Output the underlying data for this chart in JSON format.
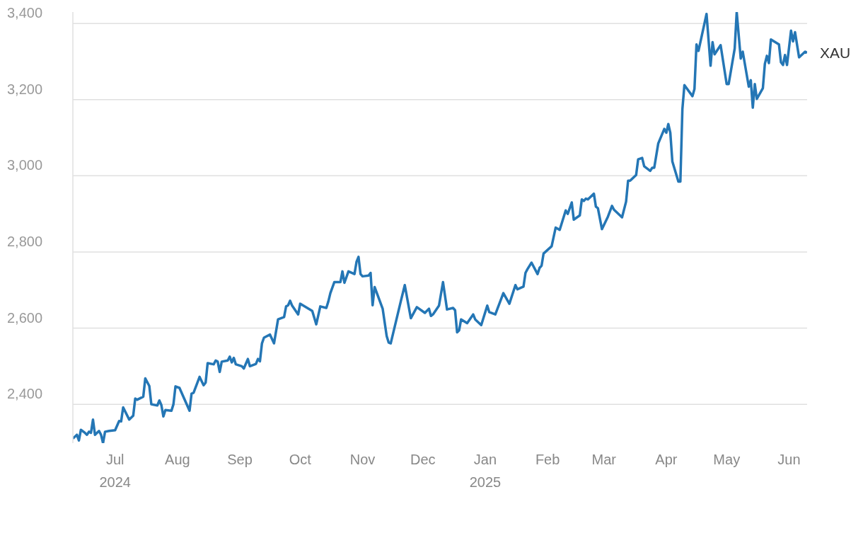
{
  "chart_data": {
    "type": "line",
    "x": [
      "2024-06-10",
      "2024-06-12",
      "2024-06-13",
      "2024-06-14",
      "2024-06-16",
      "2024-06-17",
      "2024-06-18",
      "2024-06-19",
      "2024-06-20",
      "2024-06-21",
      "2024-06-23",
      "2024-06-24",
      "2024-06-25",
      "2024-06-26",
      "2024-06-28",
      "2024-07-01",
      "2024-07-03",
      "2024-07-04",
      "2024-07-05",
      "2024-07-08",
      "2024-07-10",
      "2024-07-11",
      "2024-07-12",
      "2024-07-15",
      "2024-07-16",
      "2024-07-18",
      "2024-07-19",
      "2024-07-22",
      "2024-07-23",
      "2024-07-24",
      "2024-07-25",
      "2024-07-26",
      "2024-07-29",
      "2024-07-30",
      "2024-07-31",
      "2024-08-02",
      "2024-08-06",
      "2024-08-07",
      "2024-08-08",
      "2024-08-09",
      "2024-08-12",
      "2024-08-14",
      "2024-08-15",
      "2024-08-16",
      "2024-08-19",
      "2024-08-20",
      "2024-08-21",
      "2024-08-22",
      "2024-08-23",
      "2024-08-26",
      "2024-08-27",
      "2024-08-28",
      "2024-08-29",
      "2024-08-30",
      "2024-09-02",
      "2024-09-03",
      "2024-09-05",
      "2024-09-06",
      "2024-09-09",
      "2024-09-10",
      "2024-09-11",
      "2024-09-12",
      "2024-09-13",
      "2024-09-16",
      "2024-09-18",
      "2024-09-20",
      "2024-09-23",
      "2024-09-24",
      "2024-09-25",
      "2024-09-26",
      "2024-09-27",
      "2024-09-30",
      "2024-10-01",
      "2024-10-07",
      "2024-10-09",
      "2024-10-11",
      "2024-10-14",
      "2024-10-15",
      "2024-10-16",
      "2024-10-18",
      "2024-10-21",
      "2024-10-22",
      "2024-10-23",
      "2024-10-25",
      "2024-10-28",
      "2024-10-29",
      "2024-10-30",
      "2024-10-31",
      "2024-11-01",
      "2024-11-04",
      "2024-11-05",
      "2024-11-06",
      "2024-11-07",
      "2024-11-11",
      "2024-11-13",
      "2024-11-14",
      "2024-11-15",
      "2024-11-20",
      "2024-11-22",
      "2024-11-25",
      "2024-11-28",
      "2024-12-02",
      "2024-12-04",
      "2024-12-05",
      "2024-12-06",
      "2024-12-09",
      "2024-12-11",
      "2024-12-13",
      "2024-12-16",
      "2024-12-17",
      "2024-12-18",
      "2024-12-19",
      "2024-12-20",
      "2024-12-23",
      "2024-12-26",
      "2024-12-27",
      "2024-12-30",
      "2025-01-02",
      "2025-01-03",
      "2025-01-06",
      "2025-01-10",
      "2025-01-13",
      "2025-01-16",
      "2025-01-17",
      "2025-01-20",
      "2025-01-21",
      "2025-01-22",
      "2025-01-24",
      "2025-01-27",
      "2025-01-28",
      "2025-01-29",
      "2025-01-30",
      "2025-02-03",
      "2025-02-05",
      "2025-02-07",
      "2025-02-10",
      "2025-02-11",
      "2025-02-13",
      "2025-02-14",
      "2025-02-17",
      "2025-02-18",
      "2025-02-19",
      "2025-02-20",
      "2025-02-21",
      "2025-02-24",
      "2025-02-25",
      "2025-02-26",
      "2025-02-28",
      "2025-03-03",
      "2025-03-05",
      "2025-03-06",
      "2025-03-10",
      "2025-03-12",
      "2025-03-13",
      "2025-03-14",
      "2025-03-17",
      "2025-03-18",
      "2025-03-20",
      "2025-03-21",
      "2025-03-24",
      "2025-03-25",
      "2025-03-26",
      "2025-03-28",
      "2025-03-31",
      "2025-04-01",
      "2025-04-02",
      "2025-04-03",
      "2025-04-04",
      "2025-04-07",
      "2025-04-08",
      "2025-04-09",
      "2025-04-10",
      "2025-04-14",
      "2025-04-15",
      "2025-04-16",
      "2025-04-17",
      "2025-04-21",
      "2025-04-23",
      "2025-04-24",
      "2025-04-25",
      "2025-04-28",
      "2025-05-01",
      "2025-05-02",
      "2025-05-05",
      "2025-05-06",
      "2025-05-08",
      "2025-05-09",
      "2025-05-12",
      "2025-05-13",
      "2025-05-14",
      "2025-05-15",
      "2025-05-16",
      "2025-05-19",
      "2025-05-20",
      "2025-05-21",
      "2025-05-22",
      "2025-05-23",
      "2025-05-27",
      "2025-05-28",
      "2025-05-29",
      "2025-05-30",
      "2025-05-31",
      "2025-06-02",
      "2025-06-03",
      "2025-06-04",
      "2025-06-06",
      "2025-06-09",
      "2025-06-10"
    ],
    "series": [
      {
        "name": "XAU",
        "color": "#2476b5",
        "values": [
          2310,
          2320,
          2305,
          2333,
          2325,
          2320,
          2328,
          2325,
          2360,
          2320,
          2330,
          2320,
          2298,
          2328,
          2330,
          2332,
          2356,
          2355,
          2392,
          2360,
          2370,
          2415,
          2412,
          2420,
          2468,
          2448,
          2400,
          2397,
          2410,
          2398,
          2368,
          2385,
          2383,
          2400,
          2447,
          2443,
          2395,
          2383,
          2428,
          2430,
          2472,
          2450,
          2457,
          2508,
          2505,
          2515,
          2512,
          2485,
          2512,
          2515,
          2525,
          2510,
          2522,
          2505,
          2500,
          2494,
          2519,
          2500,
          2506,
          2519,
          2513,
          2560,
          2575,
          2583,
          2560,
          2623,
          2629,
          2657,
          2660,
          2672,
          2659,
          2636,
          2664,
          2645,
          2610,
          2657,
          2653,
          2670,
          2692,
          2721,
          2721,
          2749,
          2719,
          2749,
          2742,
          2774,
          2787,
          2742,
          2736,
          2738,
          2745,
          2660,
          2708,
          2651,
          2579,
          2562,
          2560,
          2670,
          2713,
          2626,
          2655,
          2640,
          2651,
          2632,
          2636,
          2659,
          2721,
          2649,
          2653,
          2647,
          2589,
          2594,
          2623,
          2613,
          2636,
          2623,
          2608,
          2659,
          2642,
          2636,
          2692,
          2664,
          2713,
          2702,
          2709,
          2745,
          2755,
          2772,
          2742,
          2758,
          2764,
          2796,
          2815,
          2864,
          2858,
          2909,
          2900,
          2930,
          2885,
          2896,
          2938,
          2934,
          2940,
          2938,
          2953,
          2919,
          2915,
          2860,
          2893,
          2921,
          2911,
          2891,
          2932,
          2987,
          2987,
          3002,
          3043,
          3047,
          3025,
          3013,
          3021,
          3021,
          3085,
          3123,
          3113,
          3136,
          3113,
          3038,
          2985,
          2985,
          3175,
          3238,
          3209,
          3228,
          3345,
          3328,
          3425,
          3289,
          3351,
          3319,
          3343,
          3241,
          3241,
          3334,
          3430,
          3308,
          3326,
          3234,
          3251,
          3179,
          3241,
          3202,
          3230,
          3294,
          3315,
          3296,
          3358,
          3345,
          3298,
          3291,
          3317,
          3291,
          3381,
          3353,
          3377,
          3311,
          3326,
          3323
        ]
      }
    ],
    "xlim": [
      "2024-06-10",
      "2025-06-10"
    ],
    "xticks": [
      {
        "value": "2024-07-01",
        "label": "Jul\n2024"
      },
      {
        "value": "2024-08-01",
        "label": "Aug"
      },
      {
        "value": "2024-09-01",
        "label": "Sep"
      },
      {
        "value": "2024-10-01",
        "label": "Oct"
      },
      {
        "value": "2024-11-01",
        "label": "Nov"
      },
      {
        "value": "2024-12-01",
        "label": "Dec"
      },
      {
        "value": "2025-01-01",
        "label": "Jan\n2025"
      },
      {
        "value": "2025-02-01",
        "label": "Feb"
      },
      {
        "value": "2025-03-01",
        "label": "Mar"
      },
      {
        "value": "2025-04-01",
        "label": "Apr"
      },
      {
        "value": "2025-05-01",
        "label": "May"
      },
      {
        "value": "2025-06-01",
        "label": "Jun"
      }
    ],
    "ylim": [
      2298,
      3430
    ],
    "yticks": [
      {
        "value": 2400,
        "label": "2,400"
      },
      {
        "value": 2600,
        "label": "2,600"
      },
      {
        "value": 2800,
        "label": "2,800"
      },
      {
        "value": 3000,
        "label": "3,000"
      },
      {
        "value": 3200,
        "label": "3,200"
      },
      {
        "value": 3400,
        "label": "3,400"
      }
    ],
    "grid": "y",
    "legend": false,
    "marker": "none",
    "line_style": "solid"
  }
}
